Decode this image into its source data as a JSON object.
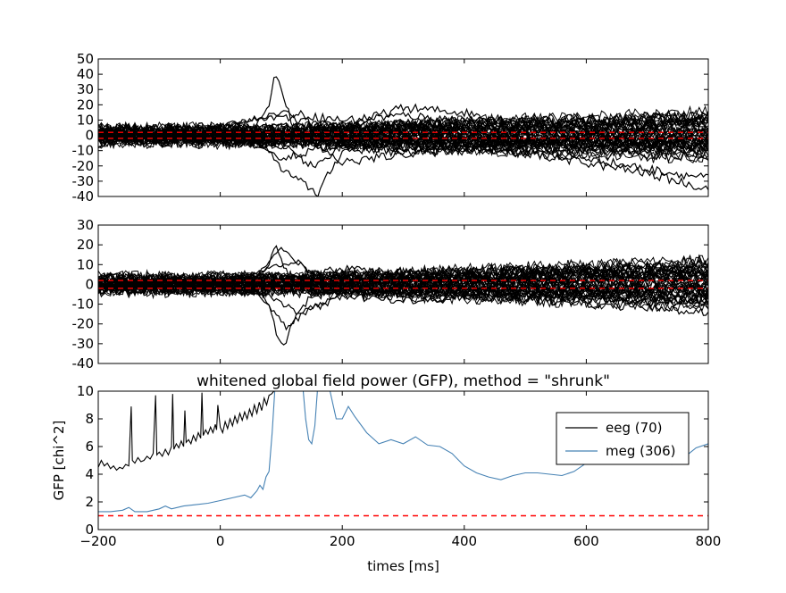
{
  "chart_data": [
    {
      "type": "line",
      "panel": "eeg-whitened",
      "ylim": [
        -40,
        50
      ],
      "yticks": [
        -40,
        -30,
        -20,
        -10,
        0,
        10,
        20,
        30,
        40,
        50
      ],
      "xlim": [
        -200,
        800
      ],
      "reference_lines": [
        -1.96,
        1.96
      ],
      "grid": false,
      "description_series_count": 70,
      "series": [
        {
          "x": [
            -200,
            -100,
            0,
            50,
            80,
            90,
            100,
            120,
            150,
            200,
            300,
            400,
            500,
            600,
            700,
            800
          ],
          "y": [
            2,
            1,
            1,
            3,
            20,
            42,
            30,
            5,
            -3,
            2,
            5,
            4,
            3,
            2,
            3,
            4
          ]
        },
        {
          "x": [
            -200,
            -100,
            0,
            50,
            80,
            100,
            130,
            160,
            200,
            300,
            400,
            500,
            600,
            700,
            800
          ],
          "y": [
            -2,
            -1,
            -1,
            -2,
            -10,
            -22,
            -30,
            -38,
            -10,
            -8,
            -6,
            -6,
            -6,
            -5,
            -5
          ]
        },
        {
          "x": [
            -200,
            -100,
            0,
            50,
            100,
            150,
            200,
            250,
            300,
            400,
            500,
            600,
            700,
            800
          ],
          "y": [
            1,
            2,
            5,
            10,
            12,
            8,
            5,
            12,
            18,
            15,
            8,
            6,
            6,
            10
          ]
        },
        {
          "x": [
            -200,
            -100,
            0,
            100,
            150,
            200,
            300,
            400,
            500,
            600,
            700,
            800
          ],
          "y": [
            -1,
            -2,
            -3,
            -5,
            -20,
            -8,
            -5,
            -8,
            -12,
            -15,
            -22,
            -28
          ]
        },
        {
          "x": [
            -200,
            -100,
            0,
            100,
            200,
            300,
            400,
            500,
            600,
            700,
            800
          ],
          "y": [
            0,
            -1,
            2,
            -15,
            -5,
            -12,
            -10,
            -12,
            -18,
            -25,
            -35
          ]
        },
        {
          "x": [
            -200,
            -100,
            0,
            100,
            200,
            300,
            400,
            500,
            600,
            700,
            800
          ],
          "y": [
            3,
            4,
            6,
            15,
            10,
            13,
            10,
            6,
            4,
            6,
            12
          ]
        },
        {
          "x": [
            -200,
            -100,
            0,
            100,
            200,
            300,
            400,
            500,
            600,
            700,
            800
          ],
          "y": [
            -3,
            -3,
            -2,
            8,
            -18,
            -12,
            -8,
            -4,
            -3,
            -5,
            -8
          ]
        },
        {
          "x": [
            -200,
            -100,
            0,
            100,
            200,
            300,
            400,
            500,
            600,
            700,
            800
          ],
          "y": [
            1,
            0,
            -1,
            -8,
            6,
            8,
            5,
            2,
            1,
            0,
            2
          ]
        }
      ]
    },
    {
      "type": "line",
      "panel": "meg-whitened",
      "ylim": [
        -40,
        30
      ],
      "yticks": [
        -40,
        -30,
        -20,
        -10,
        0,
        10,
        20,
        30
      ],
      "xlim": [
        -200,
        800
      ],
      "reference_lines": [
        -1.96,
        1.96
      ],
      "grid": false,
      "series": [
        {
          "x": [
            -200,
            -100,
            0,
            60,
            80,
            90,
            100,
            120,
            150,
            200,
            300,
            400,
            500,
            600,
            700,
            800
          ],
          "y": [
            1,
            1,
            2,
            3,
            10,
            21,
            12,
            0,
            -5,
            2,
            4,
            3,
            2,
            3,
            4,
            5
          ]
        },
        {
          "x": [
            -200,
            -100,
            0,
            60,
            80,
            95,
            105,
            120,
            150,
            200,
            300,
            400,
            500,
            600,
            700,
            800
          ],
          "y": [
            -1,
            -1,
            -1,
            -3,
            -10,
            -28,
            -31,
            -18,
            -5,
            -3,
            -5,
            -6,
            -8,
            -10,
            -12,
            -14
          ]
        },
        {
          "x": [
            -200,
            -100,
            0,
            60,
            100,
            150,
            200,
            300,
            400,
            500,
            600,
            700,
            800
          ],
          "y": [
            2,
            2,
            3,
            5,
            18,
            5,
            8,
            6,
            4,
            5,
            6,
            5,
            6
          ]
        },
        {
          "x": [
            -200,
            -100,
            0,
            60,
            110,
            150,
            200,
            300,
            400,
            500,
            600,
            700,
            800
          ],
          "y": [
            -2,
            -2,
            -3,
            -4,
            -22,
            -12,
            -6,
            -8,
            -7,
            -5,
            -7,
            -9,
            -10
          ]
        },
        {
          "x": [
            -200,
            -100,
            0,
            80,
            120,
            160,
            200,
            300,
            400,
            500,
            600,
            700,
            800
          ],
          "y": [
            0,
            1,
            0,
            8,
            12,
            3,
            6,
            3,
            2,
            1,
            2,
            3,
            3
          ]
        },
        {
          "x": [
            -200,
            -100,
            0,
            80,
            130,
            170,
            200,
            300,
            400,
            500,
            600,
            700,
            800
          ],
          "y": [
            0,
            -1,
            0,
            -6,
            -14,
            -10,
            -4,
            -3,
            -2,
            -3,
            -4,
            -5,
            -6
          ]
        }
      ]
    },
    {
      "type": "line",
      "panel": "gfp",
      "title": "whitened global field power (GFP), method = \"shrunk\"",
      "xlabel": "times [ms]",
      "ylabel": "GFP [chi^2]",
      "xlim": [
        -200,
        800
      ],
      "ylim": [
        0,
        10
      ],
      "xticks": [
        -200,
        0,
        200,
        400,
        600,
        800
      ],
      "yticks": [
        0,
        2,
        4,
        6,
        8,
        10
      ],
      "reference_lines": [
        1
      ],
      "legend_placement": "upper-right",
      "grid": false,
      "series": [
        {
          "name": "eeg (70)",
          "color": "#000000",
          "x": [
            -200,
            -195,
            -190,
            -185,
            -180,
            -175,
            -170,
            -165,
            -160,
            -155,
            -150,
            -146,
            -144,
            -140,
            -135,
            -130,
            -125,
            -120,
            -115,
            -110,
            -106,
            -104,
            -100,
            -95,
            -90,
            -85,
            -80,
            -78,
            -76,
            -72,
            -68,
            -64,
            -60,
            -58,
            -56,
            -52,
            -48,
            -44,
            -40,
            -36,
            -32,
            -30,
            -28,
            -24,
            -20,
            -16,
            -12,
            -8,
            -6,
            -4,
            0,
            4,
            8,
            12,
            16,
            20,
            24,
            28,
            32,
            36,
            40,
            44,
            48,
            52,
            56,
            60,
            64,
            68,
            72,
            76,
            80,
            84,
            88
          ],
          "y": [
            4.5,
            5.0,
            4.6,
            4.8,
            4.4,
            4.6,
            4.3,
            4.5,
            4.4,
            4.7,
            4.6,
            8.9,
            5.0,
            4.8,
            5.2,
            4.9,
            5.0,
            5.3,
            5.1,
            5.5,
            9.7,
            5.4,
            5.6,
            5.3,
            5.8,
            5.4,
            6.0,
            9.8,
            5.8,
            6.2,
            5.9,
            6.4,
            6.0,
            8.6,
            6.3,
            6.5,
            6.2,
            6.8,
            6.4,
            7.0,
            6.6,
            9.9,
            6.8,
            7.2,
            6.9,
            7.4,
            7.0,
            7.6,
            7.2,
            9.0,
            7.4,
            7.0,
            7.8,
            7.3,
            8.0,
            7.5,
            8.2,
            7.7,
            8.4,
            7.9,
            8.5,
            8.0,
            8.7,
            8.2,
            9.0,
            8.4,
            9.2,
            8.6,
            9.5,
            9.0,
            9.7,
            9.8,
            10.0
          ]
        },
        {
          "name": "meg (306)",
          "color": "#4682b4",
          "x": [
            -200,
            -180,
            -160,
            -150,
            -140,
            -120,
            -100,
            -90,
            -80,
            -60,
            -40,
            -20,
            0,
            20,
            40,
            50,
            60,
            65,
            70,
            75,
            80,
            85,
            90,
            100,
            110,
            120,
            130,
            140,
            145,
            150,
            155,
            160,
            170,
            180,
            190,
            200,
            210,
            220,
            240,
            260,
            280,
            300,
            320,
            340,
            360,
            380,
            400,
            420,
            440,
            460,
            480,
            500,
            520,
            540,
            560,
            580,
            600,
            620,
            640,
            660,
            680,
            700,
            720,
            740,
            760,
            780,
            800
          ],
          "y": [
            1.3,
            1.3,
            1.4,
            1.6,
            1.3,
            1.3,
            1.5,
            1.7,
            1.5,
            1.7,
            1.8,
            1.9,
            2.1,
            2.3,
            2.5,
            2.3,
            2.8,
            3.2,
            2.9,
            3.8,
            4.2,
            7.0,
            10.5,
            14.0,
            12.0,
            11.0,
            13.0,
            8.0,
            6.5,
            6.2,
            7.5,
            10.5,
            11.5,
            10.0,
            8.0,
            8.0,
            8.9,
            8.2,
            7.0,
            6.2,
            6.5,
            6.2,
            6.7,
            6.1,
            6.0,
            5.5,
            4.6,
            4.1,
            3.8,
            3.6,
            3.9,
            4.1,
            4.1,
            4.0,
            3.9,
            4.2,
            4.8,
            5.2,
            5.1,
            5.0,
            4.8,
            5.0,
            4.9,
            4.7,
            5.2,
            5.9,
            6.2
          ]
        }
      ]
    }
  ]
}
